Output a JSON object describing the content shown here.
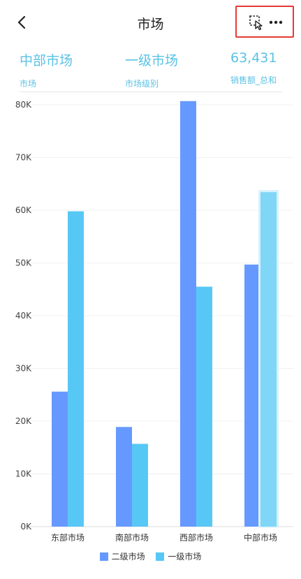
{
  "header": {
    "title": "市场",
    "back_icon": "chevron-left-icon",
    "select_icon": "dashed-select-cursor-icon",
    "more_icon": "more-horizontal-icon",
    "highlight_color": "#e53935"
  },
  "summary": [
    {
      "value": "中部市场",
      "label": "市场"
    },
    {
      "value": "一级市场",
      "label": "市场级别"
    },
    {
      "value": "63,431",
      "label": "销售额_总和"
    }
  ],
  "colors": {
    "series1": "#6699ff",
    "series2": "#57c8f5",
    "highlight": "#80d6f7",
    "accent_text": "#5bc2e4"
  },
  "chart_data": {
    "type": "bar",
    "categories": [
      "东部市场",
      "南部市场",
      "西部市场",
      "中部市场"
    ],
    "series": [
      {
        "name": "二级市场",
        "values": [
          25600,
          18900,
          80700,
          49700
        ]
      },
      {
        "name": "一级市场",
        "values": [
          59800,
          15700,
          45500,
          63431
        ]
      }
    ],
    "ylim": [
      0,
      80000
    ],
    "yticks": [
      0,
      10000,
      20000,
      30000,
      40000,
      50000,
      60000,
      70000,
      80000
    ],
    "ytick_labels": [
      "0K",
      "10K",
      "20K",
      "30K",
      "40K",
      "50K",
      "60K",
      "70K",
      "80K"
    ],
    "highlighted": {
      "category": "中部市场",
      "series": "一级市场"
    },
    "grid": true,
    "legend": "bottom"
  }
}
